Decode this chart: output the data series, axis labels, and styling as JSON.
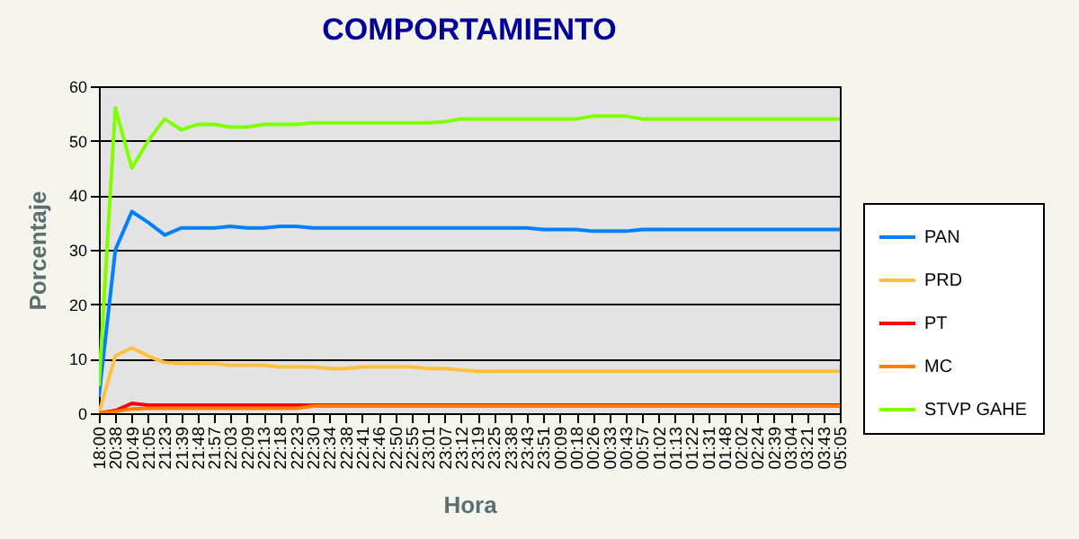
{
  "chart_data": {
    "type": "line",
    "title": "COMPORTAMIENTO",
    "xlabel": "Hora",
    "ylabel": "Porcentaje",
    "categories": [
      "18:00",
      "20:38",
      "20:49",
      "21:05",
      "21:23",
      "21:39",
      "21:48",
      "21:57",
      "22:03",
      "22:09",
      "22:13",
      "22:18",
      "22:23",
      "22:30",
      "22:34",
      "22:38",
      "22:41",
      "22:46",
      "22:50",
      "22:55",
      "23:01",
      "23:07",
      "23:12",
      "23:19",
      "23:25",
      "23:38",
      "23:43",
      "23:51",
      "00:09",
      "00:18",
      "00:26",
      "00:33",
      "00:43",
      "00:57",
      "01:02",
      "01:13",
      "01:22",
      "01:31",
      "01:48",
      "02:02",
      "02:24",
      "02:39",
      "03:04",
      "03:21",
      "03:43",
      "05:05"
    ],
    "series": [
      {
        "name": "PAN",
        "color": "#0080ff",
        "values": [
          3,
          30,
          37,
          35,
          32.7,
          34,
          34,
          34,
          34.3,
          34,
          34,
          34.3,
          34.3,
          34,
          34,
          34,
          34,
          34,
          34,
          34,
          34,
          34,
          34,
          34,
          34,
          34,
          34,
          33.7,
          33.7,
          33.7,
          33.4,
          33.4,
          33.4,
          33.7,
          33.7,
          33.7,
          33.7,
          33.7,
          33.7,
          33.7,
          33.7,
          33.7,
          33.7,
          33.7,
          33.7,
          33.7
        ]
      },
      {
        "name": "PRD",
        "color": "#ffc040",
        "values": [
          0,
          10.5,
          12,
          10.5,
          9.3,
          9.1,
          9.1,
          9.1,
          8.8,
          8.8,
          8.8,
          8.5,
          8.5,
          8.5,
          8.2,
          8.2,
          8.5,
          8.5,
          8.5,
          8.5,
          8.2,
          8.2,
          7.9,
          7.7,
          7.7,
          7.7,
          7.7,
          7.7,
          7.7,
          7.7,
          7.7,
          7.7,
          7.7,
          7.7,
          7.7,
          7.7,
          7.7,
          7.7,
          7.7,
          7.7,
          7.7,
          7.7,
          7.7,
          7.7,
          7.7,
          7.7
        ]
      },
      {
        "name": "PT",
        "color": "#ff0000",
        "values": [
          0,
          0.5,
          1.8,
          1.5,
          1.5,
          1.5,
          1.5,
          1.5,
          1.5,
          1.5,
          1.5,
          1.5,
          1.5,
          1.5,
          1.5,
          1.5,
          1.5,
          1.5,
          1.5,
          1.5,
          1.5,
          1.5,
          1.5,
          1.5,
          1.5,
          1.5,
          1.5,
          1.5,
          1.5,
          1.5,
          1.5,
          1.5,
          1.5,
          1.5,
          1.5,
          1.5,
          1.5,
          1.5,
          1.5,
          1.5,
          1.5,
          1.5,
          1.5,
          1.5,
          1.5,
          1.5
        ]
      },
      {
        "name": "MC",
        "color": "#ff8000",
        "values": [
          0,
          0.3,
          0.8,
          0.9,
          0.9,
          0.9,
          0.9,
          0.9,
          0.9,
          0.9,
          0.9,
          0.9,
          0.9,
          1.3,
          1.3,
          1.3,
          1.3,
          1.3,
          1.3,
          1.3,
          1.3,
          1.3,
          1.3,
          1.3,
          1.3,
          1.3,
          1.3,
          1.3,
          1.3,
          1.3,
          1.3,
          1.3,
          1.3,
          1.3,
          1.3,
          1.3,
          1.3,
          1.3,
          1.3,
          1.3,
          1.3,
          1.3,
          1.3,
          1.3,
          1.3,
          1.3
        ]
      },
      {
        "name": "STVP GAHE",
        "color": "#80ff00",
        "values": [
          5,
          56,
          45,
          50,
          54,
          52,
          53,
          53,
          52.5,
          52.5,
          53,
          53,
          53,
          53.3,
          53.3,
          53.3,
          53.3,
          53.3,
          53.3,
          53.3,
          53.3,
          53.5,
          54,
          54,
          54,
          54,
          54,
          54,
          54,
          54,
          54.5,
          54.5,
          54.5,
          54,
          54,
          54,
          54,
          54,
          54,
          54,
          54,
          54,
          54,
          54,
          54,
          54
        ]
      }
    ],
    "ylim": [
      0,
      60
    ],
    "yticks": [
      0,
      10,
      20,
      30,
      40,
      50,
      60
    ],
    "grid": "y",
    "legend": "right",
    "marker": "none",
    "line_style": "solid"
  }
}
